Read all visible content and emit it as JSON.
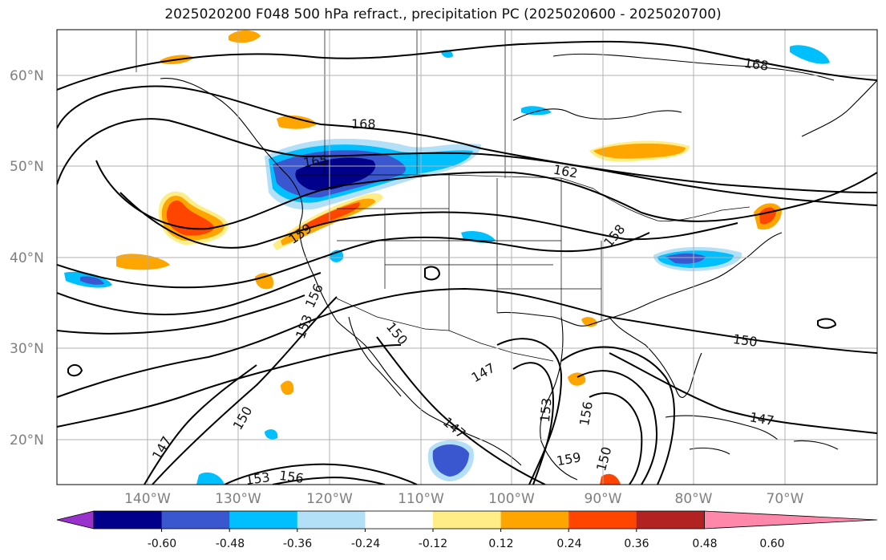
{
  "title": "2025020200 F048 500 hPa refract., precipitation PC (2025020600 - 2025020700)",
  "lat_labels": [
    "60°N",
    "50°N",
    "40°N",
    "30°N",
    "20°N"
  ],
  "lon_labels": [
    "140°W",
    "130°W",
    "120°W",
    "110°W",
    "100°W",
    "90°W",
    "80°W",
    "70°W"
  ],
  "contour_labels": [
    "168",
    "168",
    "165",
    "162",
    "159",
    "158",
    "156",
    "153",
    "150",
    "150",
    "147",
    "147",
    "147",
    "150",
    "153",
    "156",
    "159",
    "150",
    "156",
    "147",
    "153"
  ],
  "colorbar": {
    "ticks": [
      "-0.60",
      "-0.48",
      "-0.36",
      "-0.24",
      "-0.12",
      "0.12",
      "0.24",
      "0.36",
      "0.48",
      "0.60"
    ],
    "colors": [
      "#9932cc",
      "#00008b",
      "#3a57d0",
      "#00bfff",
      "#b3e0f7",
      "#ffffff",
      "#ffee88",
      "#ffa500",
      "#ff4500",
      "#b22222",
      "#ff88aa"
    ]
  }
}
